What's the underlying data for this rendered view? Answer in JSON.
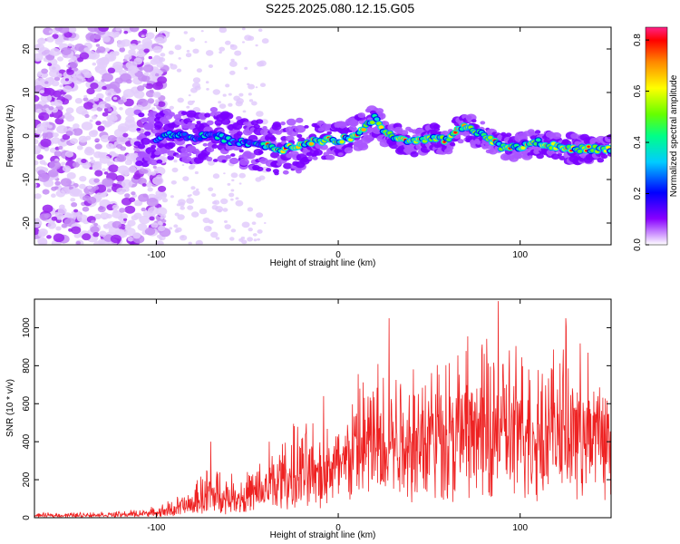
{
  "figure": {
    "title": "S225.2025.080.12.15.G05"
  },
  "chart_data": [
    {
      "type": "heatmap",
      "xlabel": "Height of straight line (km)",
      "ylabel": "Frequency (Hz)",
      "xlim": [
        -167,
        150
      ],
      "ylim": [
        -25,
        25
      ],
      "x_ticks": [
        -100,
        0,
        100
      ],
      "x_tick_labels": [
        "-100",
        "0",
        "100"
      ],
      "y_ticks": [
        -20,
        -10,
        0,
        10,
        20
      ],
      "y_tick_labels": [
        "-20",
        "-10",
        "0",
        "10",
        "20"
      ],
      "colorbar": {
        "label": "Normalized spectral amplitude",
        "range": [
          0,
          0.85
        ],
        "ticks": [
          0,
          0.2,
          0.4,
          0.6,
          0.8
        ],
        "tick_labels": [
          "0.0",
          "0.2",
          "0.4",
          "0.6",
          "0.8"
        ],
        "colors": [
          "#ffffff",
          "#8800ff",
          "#0000ff",
          "#00ccff",
          "#00ff88",
          "#66ff00",
          "#ffff00",
          "#ff8800",
          "#ff0000",
          "#ff2288"
        ]
      },
      "ridge": {
        "x": [
          -100,
          -90,
          -80,
          -70,
          -60,
          -50,
          -40,
          -30,
          -20,
          -10,
          0,
          10,
          15,
          20,
          25,
          30,
          40,
          50,
          60,
          65,
          70,
          80,
          90,
          100,
          110,
          120,
          130,
          140,
          148
        ],
        "y": [
          -0.5,
          0.5,
          -0.5,
          0.5,
          -1,
          -1.5,
          -2,
          -3,
          -2,
          -1,
          -1,
          0,
          2,
          4,
          1.5,
          0,
          -1.5,
          -0.5,
          -1,
          1.5,
          2,
          0,
          -2.5,
          -2.5,
          -1.5,
          -2.5,
          -3,
          -3,
          -3
        ]
      }
    },
    {
      "type": "line",
      "xlabel": "Height of straight line (km)",
      "ylabel": "SNR (10 * v/v)",
      "xlim": [
        -167,
        150
      ],
      "ylim": [
        0,
        1150
      ],
      "x_ticks": [
        -100,
        0,
        100
      ],
      "x_tick_labels": [
        "-100",
        "0",
        "100"
      ],
      "y_ticks": [
        0,
        200,
        400,
        600,
        800,
        1000
      ],
      "y_tick_labels": [
        "0",
        "200",
        "400",
        "600",
        "800",
        "1000"
      ],
      "color": "#ee2222",
      "envelope": {
        "x": [
          -167,
          -120,
          -100,
          -90,
          -80,
          -75,
          -70,
          -60,
          -50,
          -40,
          -30,
          -20,
          -10,
          0,
          10,
          20,
          30,
          40,
          50,
          60,
          70,
          80,
          90,
          100,
          110,
          120,
          130,
          140,
          150
        ],
        "base": [
          10,
          15,
          25,
          35,
          60,
          90,
          100,
          100,
          100,
          130,
          180,
          220,
          280,
          330,
          370,
          400,
          420,
          440,
          460,
          460,
          470,
          470,
          470,
          470,
          480,
          490,
          500,
          500,
          500
        ],
        "top": [
          25,
          35,
          60,
          110,
          160,
          250,
          320,
          230,
          270,
          330,
          460,
          520,
          480,
          500,
          750,
          850,
          880,
          900,
          920,
          950,
          950,
          960,
          980,
          940,
          960,
          980,
          900,
          880,
          800
        ]
      },
      "peaks": [
        {
          "x": -70,
          "y": 400
        },
        {
          "x": -38,
          "y": 400
        },
        {
          "x": -8,
          "y": 640
        },
        {
          "x": 28,
          "y": 1050
        },
        {
          "x": 88,
          "y": 1140
        },
        {
          "x": 125,
          "y": 1050
        }
      ]
    }
  ]
}
